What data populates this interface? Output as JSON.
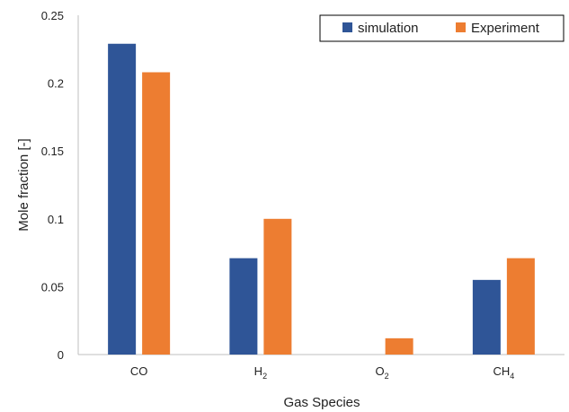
{
  "chart_data": {
    "type": "bar",
    "categories": [
      {
        "base": "CO",
        "sub": ""
      },
      {
        "base": "H",
        "sub": "2"
      },
      {
        "base": "O",
        "sub": "2"
      },
      {
        "base": "CH",
        "sub": "4"
      }
    ],
    "series": [
      {
        "name": "simulation",
        "color": "#2f5597",
        "values": [
          0.229,
          0.071,
          0.0,
          0.055
        ]
      },
      {
        "name": "Experiment",
        "color": "#ed7d31",
        "values": [
          0.208,
          0.1,
          0.012,
          0.071
        ]
      }
    ],
    "xlabel": "Gas Species",
    "ylabel": "Mole fraction [-]",
    "ylim": [
      0,
      0.25
    ],
    "yticks": [
      {
        "value": 0,
        "label": "0"
      },
      {
        "value": 0.05,
        "label": "0.05"
      },
      {
        "value": 0.1,
        "label": "0.1"
      },
      {
        "value": 0.15,
        "label": "0.15"
      },
      {
        "value": 0.2,
        "label": "0.2"
      },
      {
        "value": 0.25,
        "label": "0.25"
      }
    ],
    "grid": false,
    "legend_position": "top-right"
  }
}
